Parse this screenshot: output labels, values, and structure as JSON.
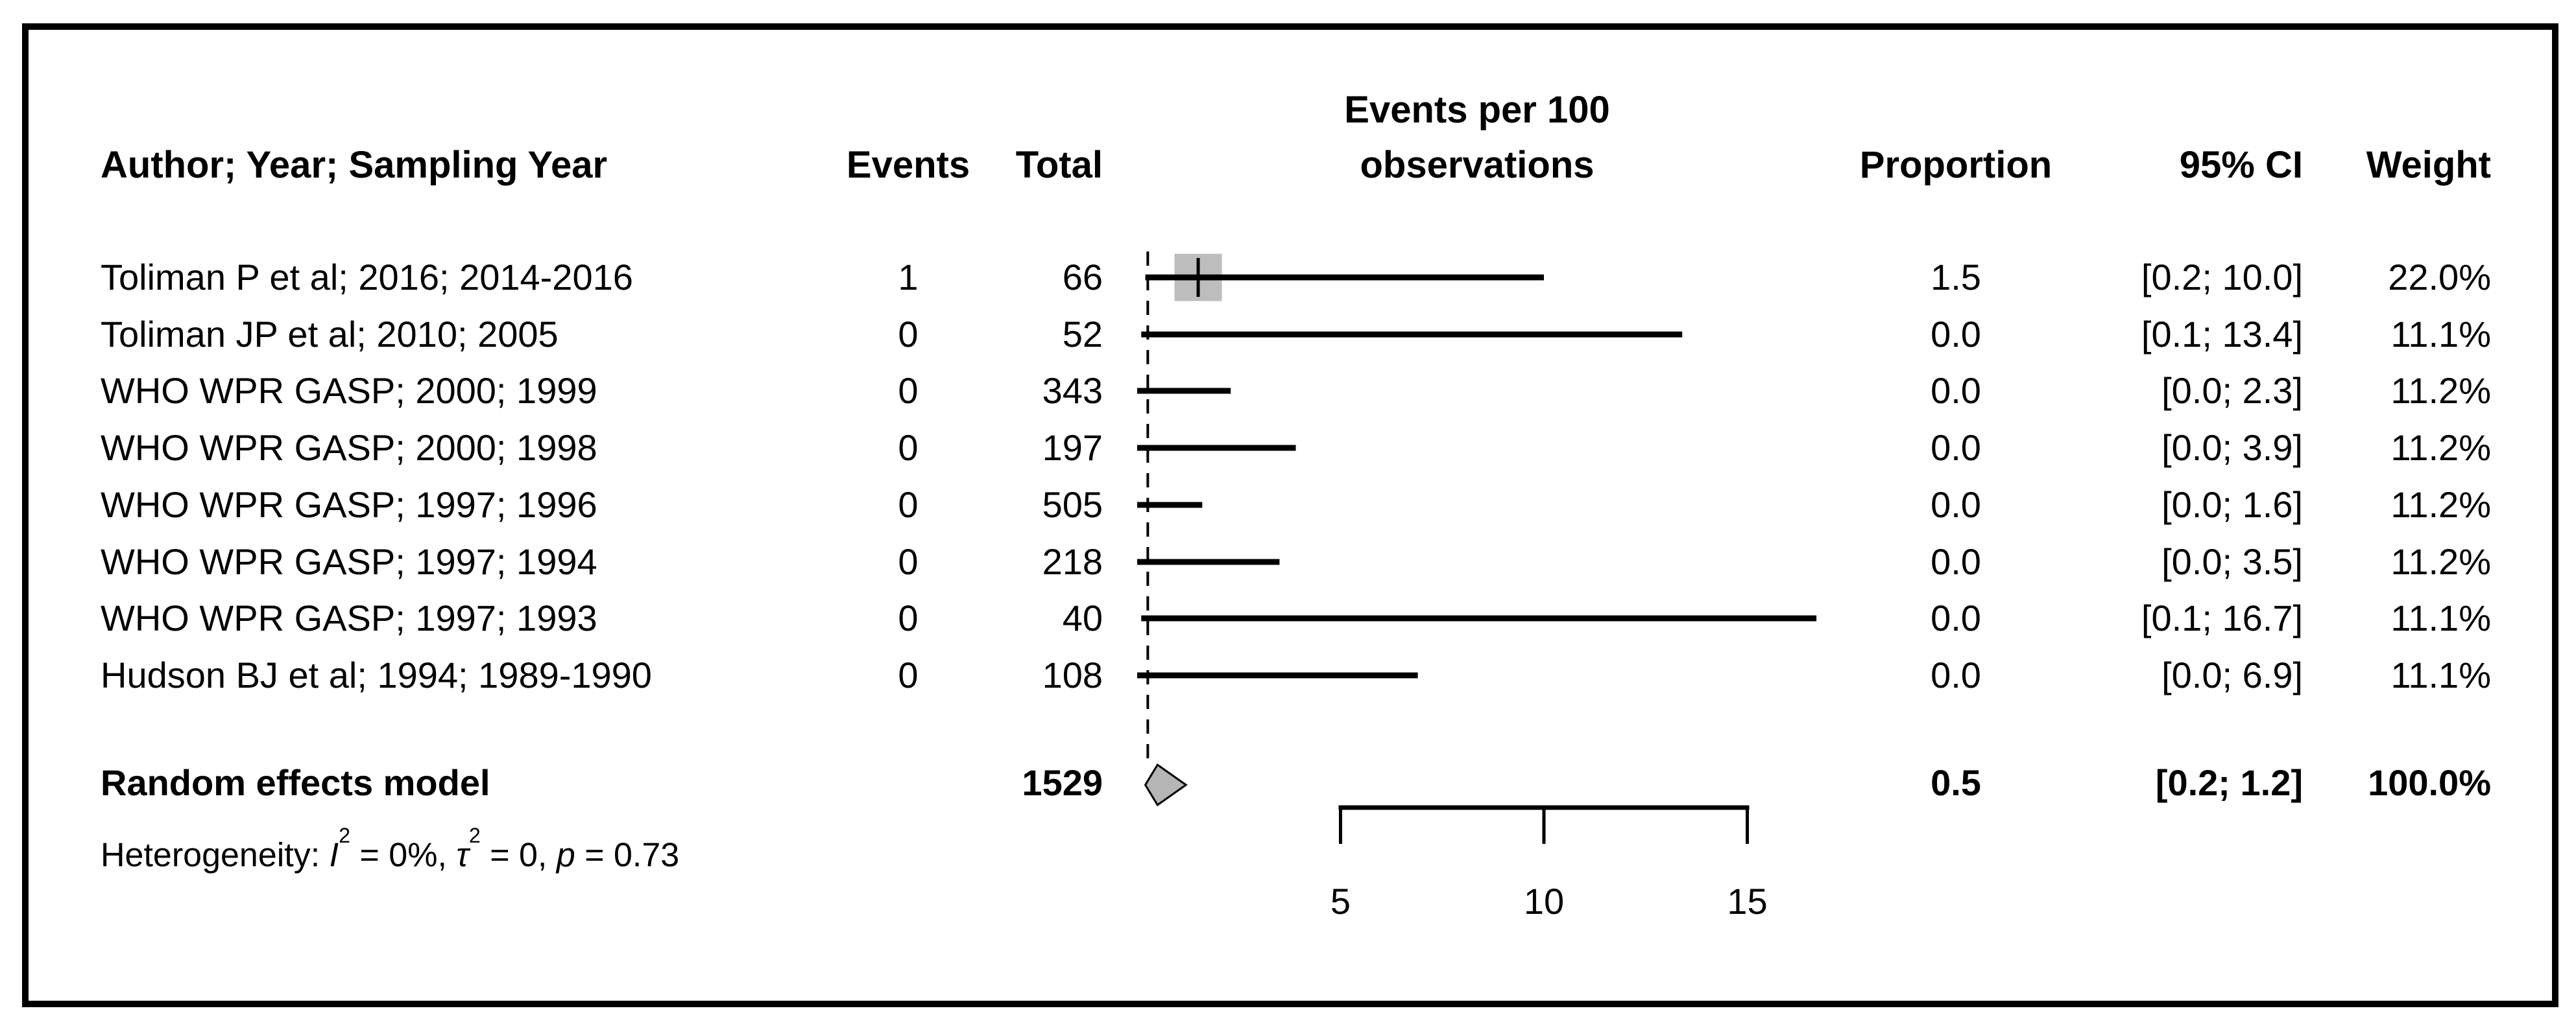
{
  "chart_data": {
    "type": "forest-plot",
    "title_column_header": "Author; Year; Sampling Year",
    "columns": {
      "events": "Events",
      "total": "Total",
      "axis_title_line1": "Events per 100",
      "axis_title_line2": "observations",
      "proportion": "Proportion",
      "ci": "95% CI",
      "weight": "Weight"
    },
    "studies": [
      {
        "author": "Toliman P et al; 2016; 2014-2016",
        "events": "1",
        "total": "66",
        "proportion": "1.5",
        "estimate": 1.5,
        "ci_lower": 0.2,
        "ci_upper": 10.0,
        "ci_label": "[0.2; 10.0]",
        "weight": "22.0%",
        "box": true
      },
      {
        "author": "Toliman JP et al; 2010; 2005",
        "events": "0",
        "total": "52",
        "proportion": "0.0",
        "estimate": 0.0,
        "ci_lower": 0.1,
        "ci_upper": 13.4,
        "ci_label": "[0.1; 13.4]",
        "weight": "11.1%",
        "box": false
      },
      {
        "author": "WHO WPR GASP; 2000; 1999",
        "events": "0",
        "total": "343",
        "proportion": "0.0",
        "estimate": 0.0,
        "ci_lower": 0.0,
        "ci_upper": 2.3,
        "ci_label": "[0.0; 2.3]",
        "weight": "11.2%",
        "box": false
      },
      {
        "author": "WHO WPR GASP; 2000; 1998",
        "events": "0",
        "total": "197",
        "proportion": "0.0",
        "estimate": 0.0,
        "ci_lower": 0.0,
        "ci_upper": 3.9,
        "ci_label": "[0.0; 3.9]",
        "weight": "11.2%",
        "box": false
      },
      {
        "author": "WHO WPR GASP; 1997; 1996",
        "events": "0",
        "total": "505",
        "proportion": "0.0",
        "estimate": 0.0,
        "ci_lower": 0.0,
        "ci_upper": 1.6,
        "ci_label": "[0.0; 1.6]",
        "weight": "11.2%",
        "box": false
      },
      {
        "author": "WHO WPR GASP; 1997; 1994",
        "events": "0",
        "total": "218",
        "proportion": "0.0",
        "estimate": 0.0,
        "ci_lower": 0.0,
        "ci_upper": 3.5,
        "ci_label": "[0.0; 3.5]",
        "weight": "11.2%",
        "box": false
      },
      {
        "author": "WHO WPR GASP; 1997; 1993",
        "events": "0",
        "total": "40",
        "proportion": "0.0",
        "estimate": 0.0,
        "ci_lower": 0.1,
        "ci_upper": 16.7,
        "ci_label": "[0.1; 16.7]",
        "weight": "11.1%",
        "box": false
      },
      {
        "author": "Hudson BJ et al; 1994; 1989-1990",
        "events": "0",
        "total": "108",
        "proportion": "0.0",
        "estimate": 0.0,
        "ci_lower": 0.0,
        "ci_upper": 6.9,
        "ci_label": "[0.0; 6.9]",
        "weight": "11.1%",
        "box": false
      }
    ],
    "pooled": {
      "label": "Random effects model",
      "total": "1529",
      "proportion": "0.5",
      "estimate": 0.5,
      "ci_lower": 0.2,
      "ci_upper": 1.2,
      "ci_label": "[0.2; 1.2]",
      "weight": "100.0%"
    },
    "heterogeneity": {
      "prefix": "Heterogeneity: ",
      "i_symbol": "I",
      "i_sup": "2",
      "i_value": " = 0%, ",
      "tau_symbol": "τ",
      "tau_sup": "2",
      "tau_value": " = 0, ",
      "p_symbol": "p",
      "p_value": " = 0.73"
    },
    "axis": {
      "ticks": [
        5,
        10,
        15
      ],
      "tick_labels": [
        "5",
        "10",
        "15"
      ],
      "range_shown": [
        0,
        17.5
      ],
      "reference_line_value": 0.5,
      "grid": false
    },
    "colors": {
      "text": "#000000",
      "line": "#000000",
      "box_fill": "#bdbdbd",
      "diamond_fill": "#b5b5b5",
      "background": "#ffffff"
    }
  }
}
